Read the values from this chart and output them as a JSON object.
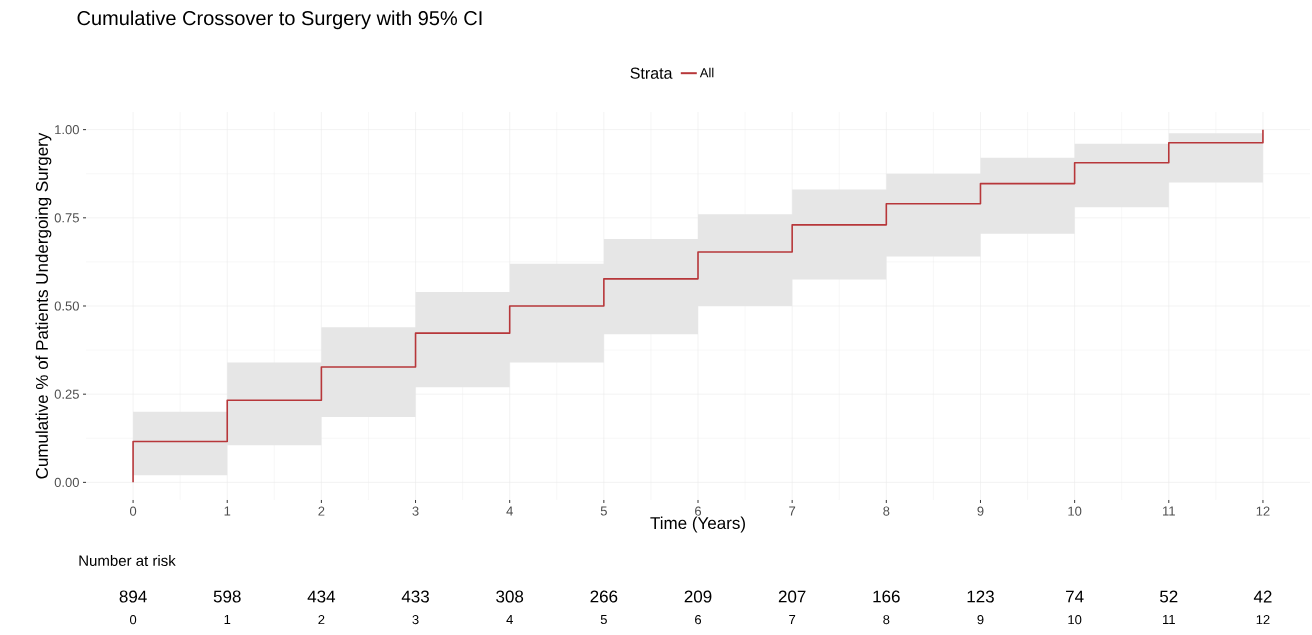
{
  "chart_data": [
    {
      "type": "step",
      "title": "Cumulative Crossover to Surgery with 95% CI",
      "xlabel": "Time (Years)",
      "ylabel": "Cumulative % of Patients Undergoing Surgery",
      "legend_title": "Strata",
      "legend": "top",
      "grid": true,
      "xlim": [
        -0.5,
        12.5
      ],
      "ylim": [
        -0.05,
        1.05
      ],
      "xticks": [
        0,
        1,
        2,
        3,
        4,
        5,
        6,
        7,
        8,
        9,
        10,
        11,
        12
      ],
      "yticks": [
        {
          "value": 0,
          "label": "0.00"
        },
        {
          "value": 0.25,
          "label": "0.25"
        },
        {
          "value": 0.5,
          "label": "0.50"
        },
        {
          "value": 0.75,
          "label": "0.75"
        },
        {
          "value": 1,
          "label": "1.00"
        }
      ],
      "series": [
        {
          "name": "All",
          "color": "#b7373a",
          "x": [
            0,
            0,
            1,
            2,
            3,
            4,
            5,
            6,
            7,
            8,
            9,
            10,
            11,
            12
          ],
          "values": [
            0,
            0.116,
            0.233,
            0.327,
            0.423,
            0.5,
            0.577,
            0.653,
            0.73,
            0.79,
            0.847,
            0.906,
            0.963,
            1.0
          ],
          "lower": [
            null,
            0.02,
            0.105,
            0.185,
            0.27,
            0.34,
            0.42,
            0.5,
            0.575,
            0.64,
            0.705,
            0.78,
            0.85,
            0.85
          ],
          "upper": [
            null,
            0.2,
            0.34,
            0.44,
            0.54,
            0.62,
            0.69,
            0.76,
            0.83,
            0.875,
            0.92,
            0.96,
            0.99,
            0.99
          ]
        }
      ]
    },
    {
      "type": "heatmap",
      "title": "Number at risk",
      "categories": [
        "0",
        "1",
        "2",
        "3",
        "4",
        "5",
        "6",
        "7",
        "8",
        "9",
        "10",
        "11",
        "12"
      ],
      "y_categories": [
        null
      ],
      "cells": [
        [
          894,
          598,
          434,
          433,
          308,
          266,
          209,
          207,
          166,
          123,
          74,
          52,
          42
        ]
      ],
      "data_labels": true
    }
  ]
}
